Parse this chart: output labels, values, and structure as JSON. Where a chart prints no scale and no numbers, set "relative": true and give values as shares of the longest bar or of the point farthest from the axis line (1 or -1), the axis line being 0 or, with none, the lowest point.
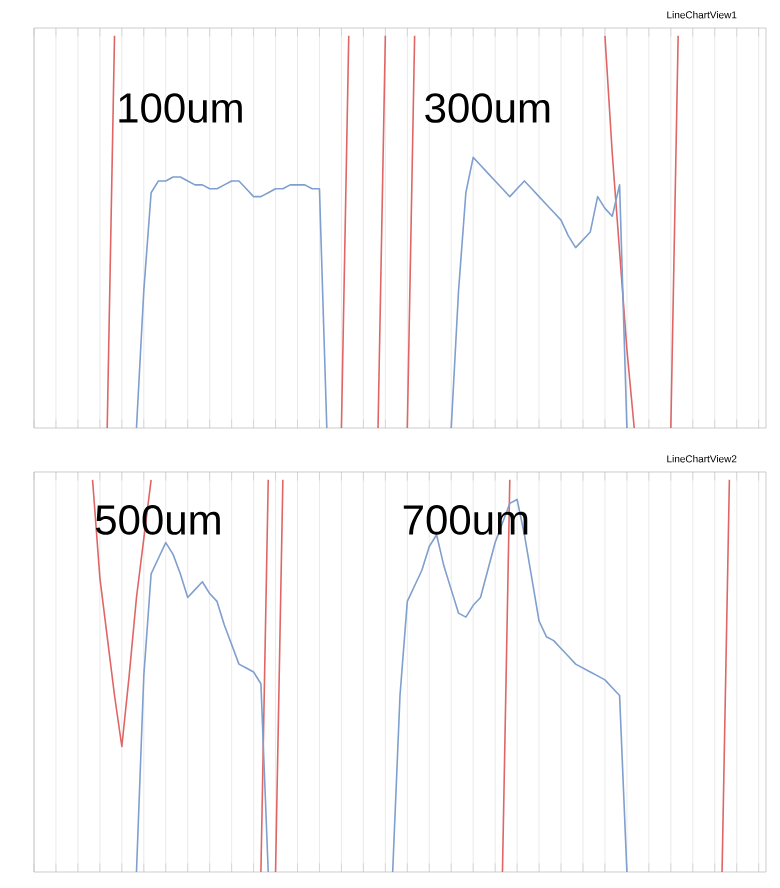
{
  "chart_data": [
    {
      "type": "line",
      "title": "LineChartView1",
      "relative": true,
      "grid": "x",
      "marker": "none",
      "line_style": "solid",
      "categories": [
        null,
        null,
        null,
        null,
        null,
        null,
        null,
        null,
        null,
        null,
        null,
        null,
        null,
        null,
        null,
        null,
        null,
        null,
        null,
        null,
        null,
        null,
        null,
        null,
        null,
        null,
        null,
        null,
        null,
        null,
        null,
        null,
        null,
        null,
        null,
        null,
        null,
        null,
        null,
        null,
        null,
        null,
        null,
        null,
        null,
        null,
        null,
        null,
        null,
        null,
        null,
        null,
        null,
        null,
        null,
        null,
        null,
        null,
        null,
        null,
        null,
        null,
        null,
        null,
        null,
        null,
        null,
        null,
        null,
        null,
        null,
        null,
        null,
        null,
        null,
        null,
        null,
        null,
        null,
        null,
        null,
        null,
        null,
        null,
        null,
        null,
        null,
        null,
        null,
        null,
        null,
        null,
        null,
        null,
        null,
        null,
        null,
        null,
        null,
        null,
        null
      ],
      "annotations": [
        "100um",
        "300um"
      ],
      "series": [
        {
          "color": "#e06666",
          "values": [
            null,
            null,
            null,
            null,
            null,
            null,
            null,
            null,
            null,
            null,
            0,
            1,
            null,
            null,
            null,
            null,
            null,
            null,
            null,
            null,
            null,
            null,
            null,
            null,
            null,
            null,
            null,
            null,
            null,
            null,
            null,
            null,
            null,
            null,
            null,
            null,
            null,
            null,
            null,
            null,
            null,
            null,
            null,
            null,
            null,
            null,
            null,
            null,
            null,
            null,
            null,
            null,
            null,
            null,
            null,
            null,
            null,
            null,
            null,
            null,
            null,
            null,
            null,
            null,
            null,
            null,
            null,
            null,
            null,
            null,
            null,
            null,
            null,
            null,
            null,
            null,
            null,
            null,
            null,
            null,
            null,
            null,
            null,
            null,
            null,
            null,
            null,
            null,
            null,
            null,
            null,
            null,
            null,
            null,
            null,
            null,
            null,
            null,
            null,
            null,
            null
          ]
        },
        {
          "color": "#e06666",
          "values": [
            null,
            null,
            null,
            null,
            null,
            null,
            null,
            null,
            null,
            null,
            null,
            null,
            null,
            null,
            null,
            null,
            null,
            null,
            null,
            null,
            null,
            null,
            null,
            null,
            null,
            null,
            null,
            null,
            null,
            null,
            null,
            null,
            null,
            null,
            null,
            null,
            null,
            null,
            null,
            null,
            null,
            null,
            0,
            1,
            null,
            null,
            null,
            null,
            null,
            null,
            null,
            null,
            null,
            null,
            null,
            null,
            null,
            null,
            null,
            null,
            null,
            null,
            null,
            null,
            null,
            null,
            null,
            null,
            null,
            null,
            null,
            null,
            null,
            null,
            null,
            null,
            null,
            null,
            null,
            null,
            null,
            null,
            null,
            null,
            null,
            null,
            null,
            null,
            null,
            null,
            null,
            null,
            null,
            null,
            null,
            null,
            null,
            null,
            null,
            null,
            null
          ]
        },
        {
          "color": "#e06666",
          "values": [
            null,
            null,
            null,
            null,
            null,
            null,
            null,
            null,
            null,
            null,
            null,
            null,
            null,
            null,
            null,
            null,
            null,
            null,
            null,
            null,
            null,
            null,
            null,
            null,
            null,
            null,
            null,
            null,
            null,
            null,
            null,
            null,
            null,
            null,
            null,
            null,
            null,
            null,
            null,
            null,
            null,
            null,
            null,
            null,
            null,
            null,
            null,
            0,
            1,
            null,
            null,
            null,
            null,
            null,
            null,
            null,
            null,
            null,
            null,
            null,
            null,
            null,
            null,
            null,
            null,
            null,
            null,
            null,
            null,
            null,
            null,
            null,
            null,
            null,
            null,
            null,
            null,
            null,
            null,
            null,
            null,
            null,
            null,
            null,
            null,
            null,
            null,
            null,
            null,
            null,
            null,
            null,
            null,
            null,
            null,
            null,
            null,
            null,
            null,
            null,
            null
          ]
        },
        {
          "color": "#e06666",
          "values": [
            null,
            null,
            null,
            null,
            null,
            null,
            null,
            null,
            null,
            null,
            null,
            null,
            null,
            null,
            null,
            null,
            null,
            null,
            null,
            null,
            null,
            null,
            null,
            null,
            null,
            null,
            null,
            null,
            null,
            null,
            null,
            null,
            null,
            null,
            null,
            null,
            null,
            null,
            null,
            null,
            null,
            null,
            null,
            null,
            null,
            null,
            null,
            null,
            null,
            null,
            null,
            0,
            1,
            null,
            null,
            null,
            null,
            null,
            null,
            null,
            null,
            null,
            null,
            null,
            null,
            null,
            null,
            null,
            null,
            null,
            null,
            null,
            null,
            null,
            null,
            null,
            null,
            null,
            null,
            null,
            null,
            null,
            null,
            null,
            null,
            null,
            null,
            null,
            null,
            null,
            null,
            null,
            null,
            null,
            null,
            null,
            null,
            null,
            null,
            null,
            null
          ]
        },
        {
          "color": "#e06666",
          "values": [
            null,
            null,
            null,
            null,
            null,
            null,
            null,
            null,
            null,
            null,
            null,
            null,
            null,
            null,
            null,
            null,
            null,
            null,
            null,
            null,
            null,
            null,
            null,
            null,
            null,
            null,
            null,
            null,
            null,
            null,
            null,
            null,
            null,
            null,
            null,
            null,
            null,
            null,
            null,
            null,
            null,
            null,
            null,
            null,
            null,
            null,
            null,
            null,
            null,
            null,
            null,
            null,
            null,
            null,
            null,
            null,
            null,
            null,
            null,
            null,
            null,
            null,
            null,
            null,
            null,
            null,
            null,
            null,
            null,
            null,
            null,
            null,
            null,
            null,
            null,
            null,
            null,
            null,
            1,
            0.7,
            0.45,
            0.2,
            0,
            null,
            null,
            null,
            null,
            null,
            null,
            null,
            null,
            null,
            null,
            null,
            null,
            null,
            null,
            null,
            null,
            null,
            null
          ]
        },
        {
          "color": "#e06666",
          "values": [
            null,
            null,
            null,
            null,
            null,
            null,
            null,
            null,
            null,
            null,
            null,
            null,
            null,
            null,
            null,
            null,
            null,
            null,
            null,
            null,
            null,
            null,
            null,
            null,
            null,
            null,
            null,
            null,
            null,
            null,
            null,
            null,
            null,
            null,
            null,
            null,
            null,
            null,
            null,
            null,
            null,
            null,
            null,
            null,
            null,
            null,
            null,
            null,
            null,
            null,
            null,
            null,
            null,
            null,
            null,
            null,
            null,
            null,
            null,
            null,
            null,
            null,
            null,
            null,
            null,
            null,
            null,
            null,
            null,
            null,
            null,
            null,
            null,
            null,
            null,
            null,
            null,
            null,
            null,
            null,
            null,
            null,
            null,
            null,
            null,
            null,
            null,
            0,
            1,
            null,
            null,
            null,
            null,
            null,
            null,
            null,
            null,
            null,
            null,
            null,
            null
          ]
        },
        {
          "color": "#7f9fcf",
          "values": [
            null,
            null,
            null,
            null,
            null,
            null,
            null,
            null,
            null,
            null,
            null,
            null,
            null,
            null,
            0,
            0.35,
            0.6,
            0.63,
            0.63,
            0.64,
            0.64,
            0.63,
            0.62,
            0.62,
            0.61,
            0.61,
            0.62,
            0.63,
            0.63,
            0.61,
            0.59,
            0.59,
            0.6,
            0.61,
            0.61,
            0.62,
            0.62,
            0.62,
            0.61,
            0.61,
            0,
            null,
            null,
            null,
            null,
            null,
            null,
            null,
            null,
            null,
            null,
            null,
            null,
            null,
            null,
            null,
            null,
            null,
            null,
            null,
            null,
            null,
            null,
            null,
            null,
            null,
            null,
            null,
            null,
            null,
            null,
            null,
            null,
            null,
            null,
            null,
            null,
            null,
            null,
            null,
            null,
            null,
            null,
            null,
            null,
            null,
            null,
            null,
            null,
            null,
            null,
            null,
            null,
            null,
            null,
            null,
            null,
            null,
            null,
            null,
            null
          ]
        },
        {
          "color": "#7f9fcf",
          "values": [
            null,
            null,
            null,
            null,
            null,
            null,
            null,
            null,
            null,
            null,
            null,
            null,
            null,
            null,
            null,
            null,
            null,
            null,
            null,
            null,
            null,
            null,
            null,
            null,
            null,
            null,
            null,
            null,
            null,
            null,
            null,
            null,
            null,
            null,
            null,
            null,
            null,
            null,
            null,
            null,
            null,
            null,
            null,
            null,
            null,
            null,
            null,
            null,
            null,
            null,
            null,
            null,
            null,
            null,
            null,
            null,
            null,
            0,
            0.35,
            0.6,
            0.69,
            0.67,
            0.65,
            0.63,
            0.61,
            0.59,
            0.61,
            0.63,
            0.61,
            0.59,
            0.57,
            0.55,
            0.53,
            0.49,
            0.46,
            0.48,
            0.5,
            0.59,
            0.56,
            0.54,
            0.62,
            0,
            null,
            null,
            null,
            null,
            null,
            null,
            null,
            null,
            null,
            null,
            null,
            null,
            null,
            null,
            null,
            null,
            null,
            null,
            null
          ]
        }
      ]
    },
    {
      "type": "line",
      "title": "LineChartView2",
      "relative": true,
      "grid": "x",
      "marker": "none",
      "line_style": "solid",
      "categories": [
        null,
        null,
        null,
        null,
        null,
        null,
        null,
        null,
        null,
        null,
        null,
        null,
        null,
        null,
        null,
        null,
        null,
        null,
        null,
        null,
        null,
        null,
        null,
        null,
        null,
        null,
        null,
        null,
        null,
        null,
        null,
        null,
        null,
        null,
        null,
        null,
        null,
        null,
        null,
        null,
        null,
        null,
        null,
        null,
        null,
        null,
        null,
        null,
        null,
        null,
        null,
        null,
        null,
        null,
        null,
        null,
        null,
        null,
        null,
        null,
        null,
        null,
        null,
        null,
        null,
        null,
        null,
        null,
        null,
        null,
        null,
        null,
        null,
        null,
        null,
        null,
        null,
        null,
        null,
        null,
        null,
        null,
        null,
        null,
        null,
        null,
        null,
        null,
        null,
        null,
        null,
        null,
        null,
        null,
        null,
        null,
        null,
        null,
        null,
        null,
        null
      ],
      "annotations": [
        "500um",
        "700um"
      ],
      "series": [
        {
          "color": "#e06666",
          "values": [
            null,
            null,
            null,
            null,
            null,
            null,
            null,
            null,
            1,
            0.75,
            0.6,
            0.45,
            0.32,
            0.5,
            0.7,
            0.85,
            1,
            null,
            null,
            null,
            null,
            null,
            null,
            null,
            null,
            null,
            null,
            null,
            null,
            null,
            null,
            null,
            null,
            null,
            null,
            null,
            null,
            null,
            null,
            null,
            null,
            null,
            null,
            null,
            null,
            null,
            null,
            null,
            null,
            null,
            null,
            null,
            null,
            null,
            null,
            null,
            null,
            null,
            null,
            null,
            null,
            null,
            null,
            null,
            null,
            null,
            null,
            null,
            null,
            null,
            null,
            null,
            null,
            null,
            null,
            null,
            null,
            null,
            null,
            null,
            null,
            null,
            null,
            null,
            null,
            null,
            null,
            null,
            null,
            null,
            null,
            null,
            null,
            null,
            null,
            null,
            null,
            null,
            null,
            null,
            null
          ]
        },
        {
          "color": "#e06666",
          "values": [
            null,
            null,
            null,
            null,
            null,
            null,
            null,
            null,
            null,
            null,
            null,
            null,
            null,
            null,
            null,
            null,
            null,
            null,
            null,
            null,
            null,
            null,
            null,
            null,
            null,
            null,
            null,
            null,
            null,
            null,
            null,
            0,
            1,
            null,
            null,
            null,
            null,
            null,
            null,
            null,
            null,
            null,
            null,
            null,
            null,
            null,
            null,
            null,
            null,
            null,
            null,
            null,
            null,
            null,
            null,
            null,
            null,
            null,
            null,
            null,
            null,
            null,
            null,
            null,
            null,
            null,
            null,
            null,
            null,
            null,
            null,
            null,
            null,
            null,
            null,
            null,
            null,
            null,
            null,
            null,
            null,
            null,
            null,
            null,
            null,
            null,
            null,
            null,
            null,
            null,
            null,
            null,
            null,
            null,
            null,
            null,
            null,
            null,
            null,
            null,
            null
          ]
        },
        {
          "color": "#e06666",
          "values": [
            null,
            null,
            null,
            null,
            null,
            null,
            null,
            null,
            null,
            null,
            null,
            null,
            null,
            null,
            null,
            null,
            null,
            null,
            null,
            null,
            null,
            null,
            null,
            null,
            null,
            null,
            null,
            null,
            null,
            null,
            null,
            null,
            null,
            0,
            1,
            null,
            null,
            null,
            null,
            null,
            null,
            null,
            null,
            null,
            null,
            null,
            null,
            null,
            null,
            null,
            null,
            null,
            null,
            null,
            null,
            null,
            null,
            null,
            null,
            null,
            null,
            null,
            null,
            null,
            null,
            null,
            null,
            null,
            null,
            null,
            null,
            null,
            null,
            null,
            null,
            null,
            null,
            null,
            null,
            null,
            null,
            null,
            null,
            null,
            null,
            null,
            null,
            null,
            null,
            null,
            null,
            null,
            null,
            null,
            null,
            null,
            null,
            null,
            null,
            null,
            null
          ]
        },
        {
          "color": "#e06666",
          "values": [
            null,
            null,
            null,
            null,
            null,
            null,
            null,
            null,
            null,
            null,
            null,
            null,
            null,
            null,
            null,
            null,
            null,
            null,
            null,
            null,
            null,
            null,
            null,
            null,
            null,
            null,
            null,
            null,
            null,
            null,
            null,
            null,
            null,
            null,
            null,
            null,
            null,
            null,
            null,
            null,
            null,
            null,
            null,
            null,
            null,
            null,
            null,
            null,
            null,
            null,
            null,
            null,
            null,
            null,
            null,
            null,
            null,
            null,
            null,
            null,
            null,
            null,
            null,
            null,
            0,
            1,
            null,
            null,
            null,
            null,
            null,
            null,
            null,
            null,
            null,
            null,
            null,
            null,
            null,
            null,
            null,
            null,
            null,
            null,
            null,
            null,
            null,
            null,
            null,
            null,
            null,
            null,
            null,
            null,
            null,
            null,
            null,
            null,
            null,
            null,
            null
          ]
        },
        {
          "color": "#e06666",
          "values": [
            null,
            null,
            null,
            null,
            null,
            null,
            null,
            null,
            null,
            null,
            null,
            null,
            null,
            null,
            null,
            null,
            null,
            null,
            null,
            null,
            null,
            null,
            null,
            null,
            null,
            null,
            null,
            null,
            null,
            null,
            null,
            null,
            null,
            null,
            null,
            null,
            null,
            null,
            null,
            null,
            null,
            null,
            null,
            null,
            null,
            null,
            null,
            null,
            null,
            null,
            null,
            null,
            null,
            null,
            null,
            null,
            null,
            null,
            null,
            null,
            null,
            null,
            null,
            null,
            null,
            null,
            null,
            null,
            null,
            null,
            null,
            null,
            null,
            null,
            null,
            null,
            null,
            null,
            null,
            null,
            null,
            null,
            null,
            null,
            null,
            null,
            null,
            null,
            null,
            null,
            null,
            null,
            null,
            null,
            0,
            1,
            null,
            null,
            null,
            null,
            null
          ]
        },
        {
          "color": "#7f9fcf",
          "values": [
            null,
            null,
            null,
            null,
            null,
            null,
            null,
            null,
            null,
            null,
            null,
            null,
            null,
            null,
            0,
            0.5,
            0.76,
            0.8,
            0.84,
            0.81,
            0.76,
            0.7,
            0.72,
            0.74,
            0.71,
            0.69,
            0.63,
            0.58,
            0.53,
            0.52,
            0.51,
            0.48,
            0,
            null,
            null,
            null,
            null,
            null,
            null,
            null,
            null,
            null,
            null,
            null,
            null,
            null,
            null,
            null,
            null,
            null,
            null,
            null,
            null,
            null,
            null,
            null,
            null,
            null,
            null,
            null,
            null,
            null,
            null,
            null,
            null,
            null,
            null,
            null,
            null,
            null,
            null,
            null,
            null,
            null,
            null,
            null,
            null,
            null,
            null,
            null,
            null,
            null,
            null,
            null,
            null,
            null,
            null,
            null,
            null,
            null,
            null,
            null,
            null,
            null,
            null,
            null,
            null,
            null,
            null,
            null,
            null
          ]
        },
        {
          "color": "#7f9fcf",
          "values": [
            null,
            null,
            null,
            null,
            null,
            null,
            null,
            null,
            null,
            null,
            null,
            null,
            null,
            null,
            null,
            null,
            null,
            null,
            null,
            null,
            null,
            null,
            null,
            null,
            null,
            null,
            null,
            null,
            null,
            null,
            null,
            null,
            null,
            null,
            null,
            null,
            null,
            null,
            null,
            null,
            null,
            null,
            null,
            null,
            null,
            null,
            null,
            null,
            null,
            0,
            0.45,
            0.69,
            0.73,
            0.77,
            0.83,
            0.86,
            0.78,
            0.72,
            0.66,
            0.65,
            0.68,
            0.7,
            0.77,
            0.84,
            0.89,
            0.94,
            0.95,
            0.86,
            0.75,
            0.64,
            0.6,
            0.59,
            0.57,
            0.55,
            0.53,
            0.52,
            0.51,
            0.5,
            0.49,
            0.47,
            0.45,
            0,
            null,
            null,
            null,
            null,
            null,
            null,
            null,
            null,
            null,
            null,
            null,
            null,
            null,
            null,
            null,
            null,
            null,
            null,
            null
          ]
        }
      ]
    }
  ]
}
